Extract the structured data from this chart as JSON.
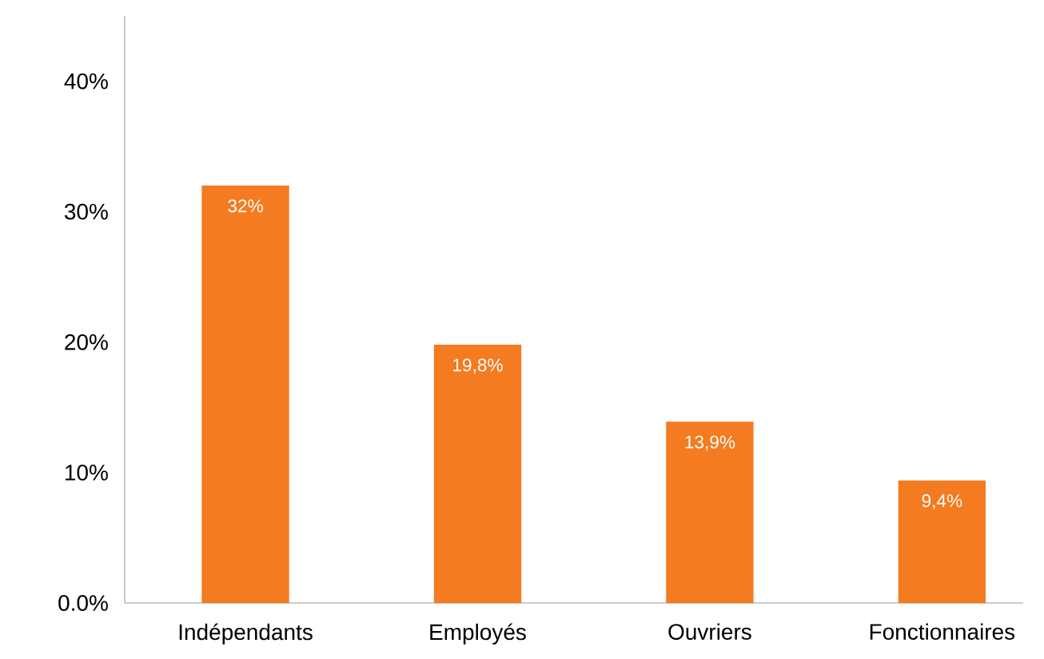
{
  "chart_data": {
    "type": "bar",
    "categories": [
      "Indépendants",
      "Employés",
      "Ouvriers",
      "Fonctionnaires"
    ],
    "values": [
      32,
      19.8,
      13.9,
      9.4
    ],
    "value_labels": [
      "32%",
      "19,8%",
      "13,9%",
      "9,4%"
    ],
    "color": "#f47b20",
    "ylim": [
      0,
      45
    ],
    "yticks": [
      {
        "value": 0,
        "label": "0.0%"
      },
      {
        "value": 10,
        "label": "10%"
      },
      {
        "value": 20,
        "label": "20%"
      },
      {
        "value": 30,
        "label": "30%"
      },
      {
        "value": 40,
        "label": "40%"
      }
    ],
    "grid": false,
    "legend": false
  }
}
